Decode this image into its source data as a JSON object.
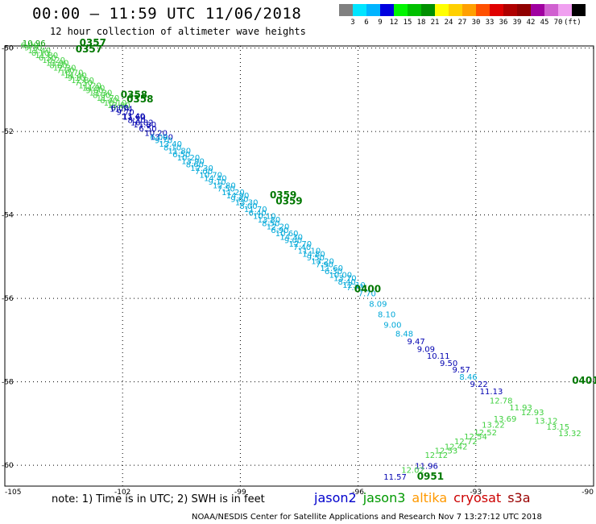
{
  "header": {
    "title": "00:00 – 11:59 UTC 11/06/2018",
    "subtitle": "12 hour collection of altimeter wave heights"
  },
  "colorbar": {
    "colors": [
      "#808080",
      "#00e5ff",
      "#00b4ff",
      "#0000e0",
      "#00f500",
      "#00c000",
      "#009000",
      "#ffff00",
      "#ffd000",
      "#ffa000",
      "#ff5000",
      "#e00000",
      "#b00000",
      "#900000",
      "#a000a0",
      "#d060d0",
      "#f0a0f0",
      "#000000"
    ],
    "labels": [
      "3",
      "6",
      "9",
      "12",
      "15",
      "18",
      "21",
      "24",
      "27",
      "30",
      "33",
      "36",
      "39",
      "42",
      "45",
      "70",
      "(ft)"
    ]
  },
  "map": {
    "lon_range": [
      -105,
      -90
    ],
    "lat_range": [
      -60.5,
      -49.95
    ],
    "lon_ticks": [
      "-105",
      "-102",
      "-99",
      "-96",
      "-93",
      "-90"
    ],
    "lat_ticks": [
      "-50",
      "-52",
      "-54",
      "-56",
      "-58",
      "-60"
    ],
    "lon_values": [
      -105,
      -102,
      -99,
      -96,
      -93,
      -90
    ],
    "lat_values": [
      -50,
      -52,
      -54,
      -56,
      -58,
      -60
    ],
    "grid_color": "#000000"
  },
  "track_colors": {
    "blue": "#0000b0",
    "cyan": "#00a8d8",
    "green": "#00a000",
    "lightgreen": "#40d040",
    "label_green": "#007700"
  },
  "observations": [
    {
      "lon": -102.33,
      "lat": -51.52,
      "text": "11.74",
      "color": "blue"
    },
    {
      "lon": -102.0,
      "lat": -51.72,
      "text": "11.60",
      "color": "blue"
    },
    {
      "lon": -101.8,
      "lat": -51.85,
      "text": "10.82",
      "color": "blue"
    },
    {
      "lon": -96.3,
      "lat": -55.8,
      "text": "7.73",
      "color": "cyan"
    },
    {
      "lon": -96.0,
      "lat": -55.95,
      "text": "7.70",
      "color": "cyan"
    },
    {
      "lon": -95.72,
      "lat": -56.2,
      "text": "8.09",
      "color": "cyan"
    },
    {
      "lon": -95.5,
      "lat": -56.45,
      "text": "8.10",
      "color": "cyan"
    },
    {
      "lon": -95.35,
      "lat": -56.7,
      "text": "9.00",
      "color": "cyan"
    },
    {
      "lon": -95.05,
      "lat": -56.92,
      "text": "8.48",
      "color": "cyan"
    },
    {
      "lon": -94.75,
      "lat": -57.1,
      "text": "9.47",
      "color": "blue"
    },
    {
      "lon": -94.5,
      "lat": -57.28,
      "text": "9.09",
      "color": "blue"
    },
    {
      "lon": -94.25,
      "lat": -57.45,
      "text": "10.11",
      "color": "blue"
    },
    {
      "lon": -93.92,
      "lat": -57.62,
      "text": "9.50",
      "color": "blue"
    },
    {
      "lon": -93.6,
      "lat": -57.78,
      "text": "9.57",
      "color": "blue"
    },
    {
      "lon": -93.42,
      "lat": -57.95,
      "text": "8.46",
      "color": "cyan"
    },
    {
      "lon": -93.15,
      "lat": -58.12,
      "text": "9.22",
      "color": "blue"
    },
    {
      "lon": -92.9,
      "lat": -58.3,
      "text": "11.13",
      "color": "blue"
    },
    {
      "lon": -92.65,
      "lat": -58.52,
      "text": "12.78",
      "color": "lightgreen"
    },
    {
      "lon": -92.15,
      "lat": -58.68,
      "text": "11.93",
      "color": "lightgreen"
    },
    {
      "lon": -91.85,
      "lat": -58.8,
      "text": "12.93",
      "color": "lightgreen"
    },
    {
      "lon": -91.5,
      "lat": -59.0,
      "text": "13.12",
      "color": "lightgreen"
    },
    {
      "lon": -91.2,
      "lat": -59.15,
      "text": "13.15",
      "color": "lightgreen"
    },
    {
      "lon": -90.9,
      "lat": -59.3,
      "text": "13.32",
      "color": "lightgreen"
    },
    {
      "lon": -92.55,
      "lat": -58.95,
      "text": "13.69",
      "color": "lightgreen"
    },
    {
      "lon": -92.85,
      "lat": -59.1,
      "text": "13.22",
      "color": "lightgreen"
    },
    {
      "lon": -93.05,
      "lat": -59.28,
      "text": "12.52",
      "color": "lightgreen"
    },
    {
      "lon": -93.3,
      "lat": -59.38,
      "text": "12.54",
      "color": "lightgreen"
    },
    {
      "lon": -93.55,
      "lat": -59.5,
      "text": "12.72",
      "color": "lightgreen"
    },
    {
      "lon": -93.8,
      "lat": -59.62,
      "text": "12.42",
      "color": "lightgreen"
    },
    {
      "lon": -94.05,
      "lat": -59.72,
      "text": "12.53",
      "color": "lightgreen"
    },
    {
      "lon": -94.3,
      "lat": -59.82,
      "text": "12.12",
      "color": "lightgreen"
    },
    {
      "lon": -94.55,
      "lat": -60.08,
      "text": "11.96",
      "color": "blue"
    },
    {
      "lon": -94.9,
      "lat": -60.18,
      "text": "12.02",
      "color": "lightgreen"
    },
    {
      "lon": -95.35,
      "lat": -60.35,
      "text": "11.57",
      "color": "blue"
    },
    {
      "lon": -104.55,
      "lat": -49.95,
      "text": "10.96",
      "color": "green"
    }
  ],
  "time_labels": [
    {
      "lon": -103.1,
      "lat": -49.95,
      "text": "0357"
    },
    {
      "lon": -103.2,
      "lat": -50.1,
      "text": "0357"
    },
    {
      "lon": -102.05,
      "lat": -51.2,
      "text": "0358"
    },
    {
      "lon": -101.9,
      "lat": -51.3,
      "text": "0358"
    },
    {
      "lon": -98.25,
      "lat": -53.6,
      "text": "0359"
    },
    {
      "lon": -98.1,
      "lat": -53.75,
      "text": "0359"
    },
    {
      "lon": -96.1,
      "lat": -55.85,
      "text": "0400"
    },
    {
      "lon": -90.55,
      "lat": -58.05,
      "text": "0401"
    },
    {
      "lon": -94.5,
      "lat": -60.35,
      "text": "0951"
    }
  ],
  "track_segments": [
    {
      "color": "lightgreen",
      "from": [
        -104.6,
        -50.0
      ],
      "to": [
        -102.3,
        -51.5
      ],
      "count": 26
    },
    {
      "color": "blue",
      "from": [
        -102.3,
        -51.5
      ],
      "to": [
        -101.3,
        -52.2
      ],
      "count": 8
    },
    {
      "color": "cyan",
      "from": [
        -101.3,
        -52.2
      ],
      "to": [
        -96.4,
        -55.75
      ],
      "count": 44
    }
  ],
  "note_text": "note: 1) Time is in UTC; 2) SWH is in feet",
  "legend": [
    {
      "name": "jason2",
      "color": "#0000cc"
    },
    {
      "name": "jason3",
      "color": "#009900"
    },
    {
      "name": "altika",
      "color": "#ff9900"
    },
    {
      "name": "cryosat",
      "color": "#cc0000"
    },
    {
      "name": "s3a",
      "color": "#990000"
    }
  ],
  "credit": "NOAA/NESDIS Center for Satellite Applications and Research   Nov  7 13:27:12 UTC 2018"
}
